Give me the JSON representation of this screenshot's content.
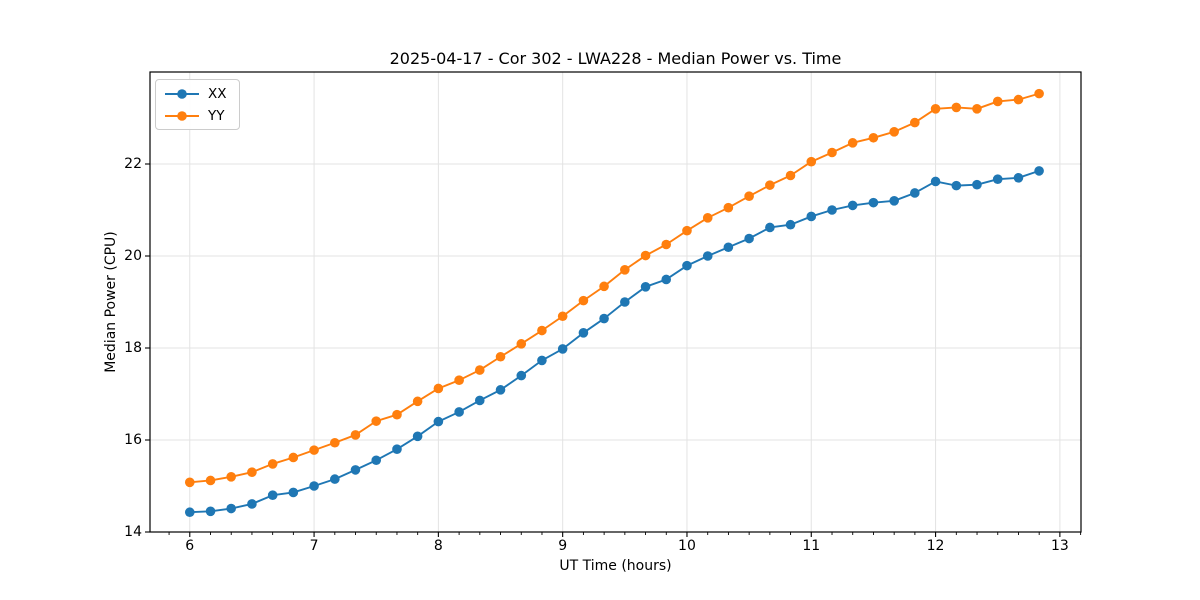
{
  "chart_data": {
    "type": "line",
    "title": "2025-04-17 - Cor 302 - LWA228 - Median Power vs. Time",
    "xlabel": "UT Time (hours)",
    "ylabel": "Median Power (CPU)",
    "xlim": [
      5.68,
      13.17
    ],
    "ylim": [
      14,
      24
    ],
    "xticks": [
      6,
      7,
      8,
      9,
      10,
      11,
      12,
      13
    ],
    "yticks": [
      14,
      16,
      18,
      20,
      22
    ],
    "x_minor_tick_step": 0.16667,
    "grid": true,
    "grid_color": "#e3e3e3",
    "spine_color": "#000000",
    "legend_position": "upper left",
    "x": [
      6.0,
      6.167,
      6.333,
      6.5,
      6.667,
      6.833,
      7.0,
      7.167,
      7.333,
      7.5,
      7.667,
      7.833,
      8.0,
      8.167,
      8.333,
      8.5,
      8.667,
      8.833,
      9.0,
      9.167,
      9.333,
      9.5,
      9.667,
      9.833,
      10.0,
      10.167,
      10.333,
      10.5,
      10.667,
      10.833,
      11.0,
      11.167,
      11.333,
      11.5,
      11.667,
      11.833,
      12.0,
      12.167,
      12.333,
      12.5,
      12.667,
      12.833
    ],
    "series": [
      {
        "name": "XX",
        "color": "#1f77b4",
        "marker": "circle",
        "values": [
          14.43,
          14.45,
          14.51,
          14.61,
          14.8,
          14.86,
          15.0,
          15.15,
          15.35,
          15.56,
          15.8,
          16.08,
          16.4,
          16.61,
          16.86,
          17.09,
          17.4,
          17.73,
          17.98,
          18.33,
          18.64,
          19.0,
          19.33,
          19.49,
          19.79,
          20.0,
          20.19,
          20.38,
          20.62,
          20.68,
          20.86,
          21.0,
          21.1,
          21.16,
          21.2,
          21.37,
          21.62,
          21.53,
          21.55,
          21.67,
          21.7,
          21.85
        ]
      },
      {
        "name": "YY",
        "color": "#ff7f0e",
        "marker": "circle",
        "values": [
          15.08,
          15.12,
          15.2,
          15.3,
          15.48,
          15.62,
          15.78,
          15.94,
          16.11,
          16.41,
          16.55,
          16.84,
          17.12,
          17.3,
          17.52,
          17.81,
          18.09,
          18.38,
          18.69,
          19.03,
          19.34,
          19.7,
          20.01,
          20.25,
          20.55,
          20.83,
          21.05,
          21.3,
          21.54,
          21.75,
          22.05,
          22.25,
          22.46,
          22.57,
          22.7,
          22.9,
          23.2,
          23.23,
          23.2,
          23.36,
          23.4,
          23.53
        ]
      }
    ]
  }
}
